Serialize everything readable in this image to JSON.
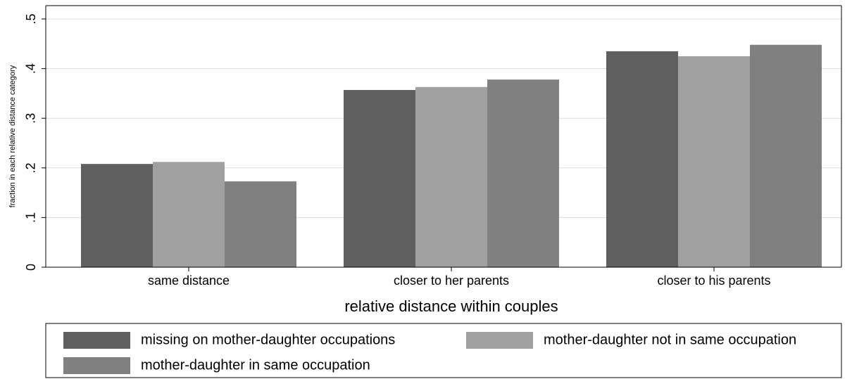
{
  "chart_data": {
    "type": "bar",
    "x_label": "relative distance within couples",
    "y_label": "fraction in each relative distance category",
    "categories": [
      "same distance",
      "closer to her parents",
      "closer to his parents"
    ],
    "series": [
      {
        "name": "missing on mother-daughter occupations",
        "color": "#5f5f5f",
        "values": [
          0.208,
          0.357,
          0.435
        ]
      },
      {
        "name": "mother-daughter not in same occupation",
        "color": "#a0a0a0",
        "values": [
          0.212,
          0.363,
          0.425
        ]
      },
      {
        "name": "mother-daughter in same occupation",
        "color": "#808080",
        "values": [
          0.173,
          0.378,
          0.448
        ]
      }
    ],
    "ylim": [
      0,
      0.5
    ],
    "yticks": [
      0,
      {
        "value": 0.1,
        "label": ".1"
      },
      {
        "value": 0.2,
        "label": ".2"
      },
      {
        "value": 0.3,
        "label": ".3"
      },
      {
        "value": 0.4,
        "label": ".4"
      },
      {
        "value": 0.5,
        "label": ".5"
      }
    ],
    "grid": true
  }
}
